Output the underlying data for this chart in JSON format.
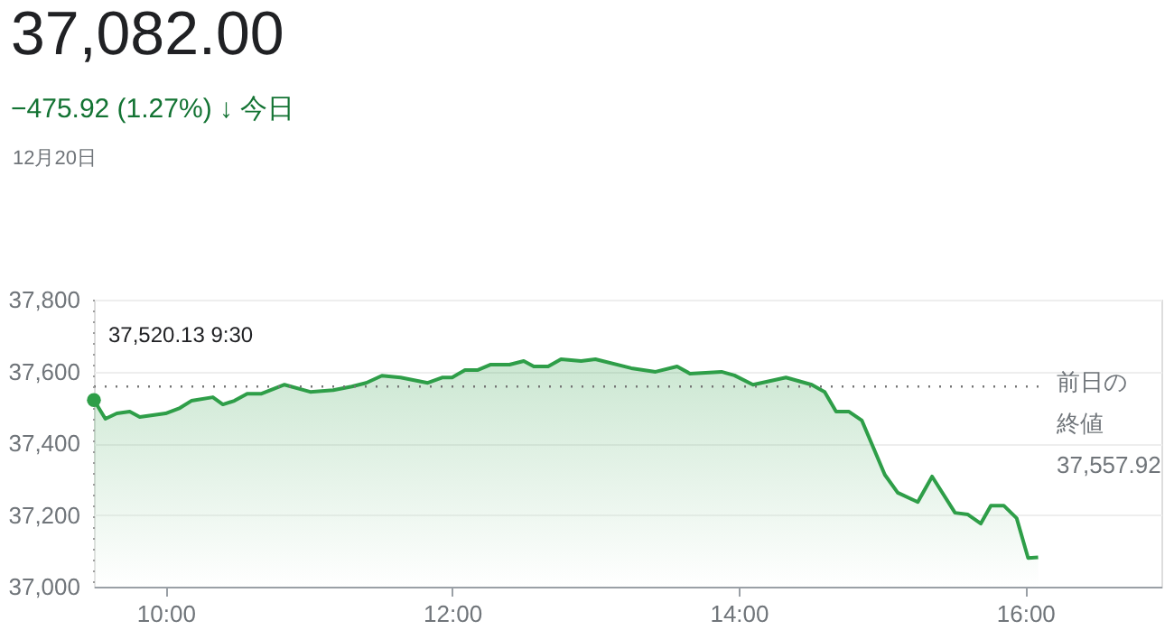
{
  "chart_data": {
    "type": "area",
    "title": "37,082.00",
    "subtitle": "−475.92 (1.27%) ↓ 今日",
    "annotations": [
      "12月20日",
      {
        "text": "37,520.13 9:30",
        "x": 9.5,
        "y": 37520.13
      }
    ],
    "x": [
      9.5,
      9.58,
      9.66,
      9.75,
      9.82,
      9.91,
      10.0,
      10.1,
      10.18,
      10.33,
      10.4,
      10.48,
      10.57,
      10.67,
      10.83,
      11.01,
      11.17,
      11.3,
      11.4,
      11.51,
      11.64,
      11.83,
      11.93,
      12.0,
      12.09,
      12.18,
      12.27,
      12.4,
      12.5,
      12.57,
      12.67,
      12.76,
      12.9,
      13.0,
      13.25,
      13.42,
      13.57,
      13.66,
      13.88,
      13.97,
      14.1,
      14.33,
      14.51,
      14.6,
      14.68,
      14.77,
      14.86,
      15.02,
      15.11,
      15.25,
      15.35,
      15.51,
      15.6,
      15.69,
      15.76,
      15.85,
      15.94,
      16.02,
      16.09
    ],
    "series": [
      {
        "color": "#2e9e48",
        "values": [
          37520.13,
          37468,
          37483,
          37488,
          37473,
          37478,
          37483,
          37498,
          37518,
          37528,
          37508,
          37518,
          37538,
          37538,
          37563,
          37543,
          37548,
          37558,
          37568,
          37588,
          37583,
          37568,
          37583,
          37583,
          37604,
          37604,
          37619,
          37619,
          37629,
          37614,
          37614,
          37634,
          37629,
          37634,
          37609,
          37599,
          37614,
          37594,
          37599,
          37589,
          37563,
          37583,
          37563,
          37543,
          37488,
          37488,
          37463,
          37312,
          37262,
          37236,
          37307,
          37206,
          37201,
          37176,
          37226,
          37226,
          37191,
          37080,
          37082
        ]
      }
    ],
    "xlim": [
      9.5,
      16.95
    ],
    "ylim": [
      37000,
      37800
    ],
    "xticks": [
      {
        "value": 10,
        "label": "10:00"
      },
      {
        "value": 12,
        "label": "12:00"
      },
      {
        "value": 14,
        "label": "14:00"
      },
      {
        "value": 16,
        "label": "16:00"
      }
    ],
    "yticks": [
      {
        "value": 37000,
        "label": "37,000"
      },
      {
        "value": 37200,
        "label": "37,200"
      },
      {
        "value": 37400,
        "label": "37,400"
      },
      {
        "value": 37600,
        "label": "37,600"
      },
      {
        "value": 37800,
        "label": "37,800"
      }
    ],
    "ref_lines": [
      {
        "axis": "y",
        "value": 37557.92,
        "label": "前日の終値 37,557.92",
        "line_style": "dotted",
        "color": "#757575"
      },
      {
        "axis": "x",
        "value": 9.5,
        "label": null,
        "line_style": "dotted",
        "color": "#9e9e9e"
      }
    ],
    "grid": "y",
    "marker": "none",
    "line_style": "solid"
  }
}
